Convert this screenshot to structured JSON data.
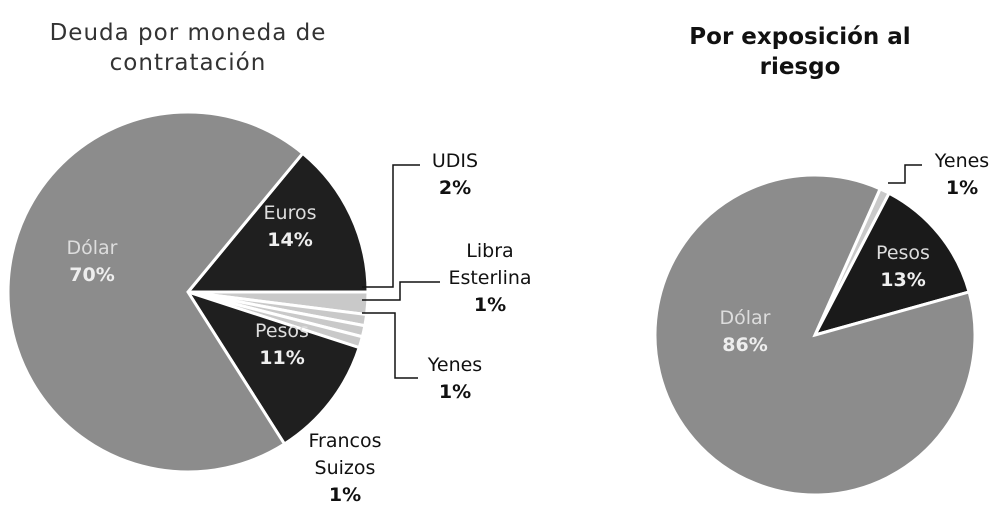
{
  "chart_data": [
    {
      "type": "pie",
      "title": "Deuda por moneda de contratación",
      "categories": [
        "Euros",
        "UDIS",
        "Libra Esterlina",
        "Yenes",
        "Francos Suizos",
        "Pesos",
        "Dólar"
      ],
      "values": [
        14,
        2,
        1,
        1,
        1,
        11,
        70
      ],
      "value_labels": [
        "14%",
        "2%",
        "1%",
        "1%",
        "1%",
        "11%",
        "70%"
      ],
      "colors": [
        "#1f1f1f",
        "#c9c9c9",
        "#c9c9c9",
        "#c9c9c9",
        "#c9c9c9",
        "#1f1f1f",
        "#8c8c8c"
      ]
    },
    {
      "type": "pie",
      "title": "Por exposición al riesgo",
      "categories": [
        "Yenes",
        "Pesos",
        "Dólar"
      ],
      "values": [
        1,
        13,
        86
      ],
      "value_labels": [
        "1%",
        "13%",
        "86%"
      ],
      "colors": [
        "#c9c9c9",
        "#1a1a1a",
        "#8c8c8c"
      ]
    }
  ]
}
